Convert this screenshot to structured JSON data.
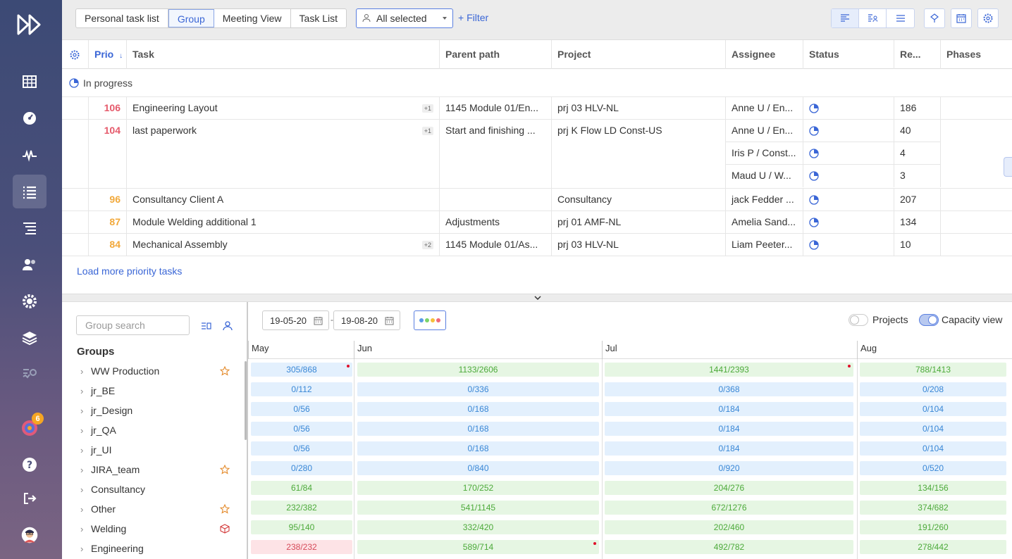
{
  "toolbar": {
    "tabs": [
      "Personal task list",
      "Group",
      "Meeting View",
      "Task List"
    ],
    "active_tab": "Group",
    "select_value": "All selected",
    "filter_label": "+ Filter"
  },
  "sidebar": {
    "notification_count": "6"
  },
  "table": {
    "headers": {
      "prio": "Prio",
      "prio_sort": "↓",
      "task": "Task",
      "parent": "Parent path",
      "project": "Project",
      "assignee": "Assignee",
      "status": "Status",
      "re": "Re...",
      "phases": "Phases"
    },
    "group_label": "In progress",
    "rows": [
      {
        "prio": "106",
        "task": "Engineering Layout",
        "tag": "+1",
        "parent": "1145 Module 01/En...",
        "project": "prj 03 HLV-NL",
        "subs": [
          {
            "assignee": "Anne U / En...",
            "re": "186"
          }
        ]
      },
      {
        "prio": "104",
        "task": "last paperwork",
        "tag": "+1",
        "parent": "Start and finishing ...",
        "project": "prj K Flow LD Const-US",
        "subs": [
          {
            "assignee": "Anne U / En...",
            "re": "40"
          },
          {
            "assignee": "Iris P / Const...",
            "re": "4"
          },
          {
            "assignee": "Maud U / W...",
            "re": "3"
          }
        ]
      },
      {
        "prio": "96",
        "task": "Consultancy Client A",
        "tag": "",
        "parent": "",
        "project": "Consultancy",
        "subs": [
          {
            "assignee": "jack Fedder ...",
            "re": "207"
          }
        ]
      },
      {
        "prio": "87",
        "task": "Module Welding additional 1",
        "tag": "",
        "parent": "Adjustments",
        "project": "prj 01 AMF-NL",
        "subs": [
          {
            "assignee": "Amelia Sand...",
            "re": "134"
          }
        ]
      },
      {
        "prio": "84",
        "task": "Mechanical Assembly",
        "tag": "+2",
        "parent": "1145 Module 01/As...",
        "project": "prj 03 HLV-NL",
        "subs": [
          {
            "assignee": "Liam Peeter...",
            "re": "10"
          }
        ]
      }
    ],
    "load_more": "Load more priority tasks"
  },
  "groups_panel": {
    "search_placeholder": "Group search",
    "title": "Groups",
    "groups": [
      {
        "name": "WW Production",
        "icon": "star-icon"
      },
      {
        "name": "jr_BE",
        "icon": ""
      },
      {
        "name": "jr_Design",
        "icon": ""
      },
      {
        "name": "jr_QA",
        "icon": ""
      },
      {
        "name": "jr_UI",
        "icon": ""
      },
      {
        "name": "JIRA_team",
        "icon": "star-icon"
      },
      {
        "name": "Consultancy",
        "icon": ""
      },
      {
        "name": "Other",
        "icon": "star-icon"
      },
      {
        "name": "Welding",
        "icon": "cube-icon"
      },
      {
        "name": "Engineering",
        "icon": ""
      }
    ]
  },
  "capacity": {
    "date_from": "19-05-20",
    "date_to": "19-08-20",
    "date_sep": "-",
    "projects_label": "Projects",
    "capacity_label": "Capacity view",
    "months": [
      "May",
      "Jun",
      "Jul",
      "Aug"
    ],
    "rows": [
      [
        {
          "v": "305/868",
          "c": "blue",
          "dot": true
        },
        {
          "v": "1133/2606",
          "c": "green",
          "dot": false
        },
        {
          "v": "1441/2393",
          "c": "green",
          "dot": true
        },
        {
          "v": "788/1413",
          "c": "green",
          "dot": false
        }
      ],
      [
        {
          "v": "0/112",
          "c": "blue"
        },
        {
          "v": "0/336",
          "c": "blue"
        },
        {
          "v": "0/368",
          "c": "blue"
        },
        {
          "v": "0/208",
          "c": "blue"
        }
      ],
      [
        {
          "v": "0/56",
          "c": "blue"
        },
        {
          "v": "0/168",
          "c": "blue"
        },
        {
          "v": "0/184",
          "c": "blue"
        },
        {
          "v": "0/104",
          "c": "blue"
        }
      ],
      [
        {
          "v": "0/56",
          "c": "blue"
        },
        {
          "v": "0/168",
          "c": "blue"
        },
        {
          "v": "0/184",
          "c": "blue"
        },
        {
          "v": "0/104",
          "c": "blue"
        }
      ],
      [
        {
          "v": "0/56",
          "c": "blue"
        },
        {
          "v": "0/168",
          "c": "blue"
        },
        {
          "v": "0/184",
          "c": "blue"
        },
        {
          "v": "0/104",
          "c": "blue"
        }
      ],
      [
        {
          "v": "0/280",
          "c": "blue"
        },
        {
          "v": "0/840",
          "c": "blue"
        },
        {
          "v": "0/920",
          "c": "blue"
        },
        {
          "v": "0/520",
          "c": "blue"
        }
      ],
      [
        {
          "v": "61/84",
          "c": "green"
        },
        {
          "v": "170/252",
          "c": "green"
        },
        {
          "v": "204/276",
          "c": "green"
        },
        {
          "v": "134/156",
          "c": "green"
        }
      ],
      [
        {
          "v": "232/382",
          "c": "green"
        },
        {
          "v": "541/1145",
          "c": "green"
        },
        {
          "v": "672/1276",
          "c": "green"
        },
        {
          "v": "374/682",
          "c": "green"
        }
      ],
      [
        {
          "v": "95/140",
          "c": "green"
        },
        {
          "v": "332/420",
          "c": "green"
        },
        {
          "v": "202/460",
          "c": "green"
        },
        {
          "v": "191/260",
          "c": "green"
        }
      ],
      [
        {
          "v": "238/232",
          "c": "red"
        },
        {
          "v": "589/714",
          "c": "green",
          "dot": true
        },
        {
          "v": "492/782",
          "c": "green"
        },
        {
          "v": "278/442",
          "c": "green"
        }
      ]
    ]
  },
  "colors": {
    "accent": "#3a66d6",
    "prio_high": "#e55a6b",
    "prio_mid": "#f2a93b"
  }
}
